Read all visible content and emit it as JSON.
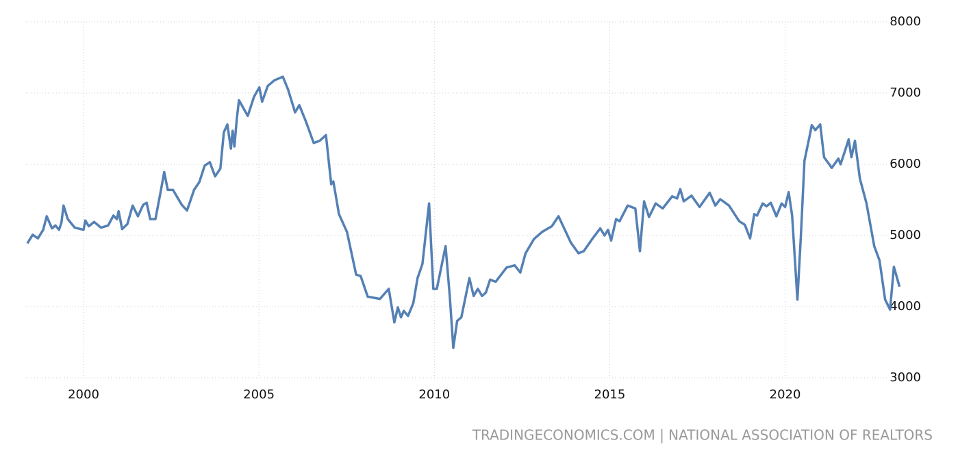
{
  "chart_data": {
    "type": "line",
    "source": "TRADINGECONOMICS.COM | NATIONAL ASSOCIATION OF REALTORS",
    "color": "#5480b4",
    "grid": true,
    "xlim": [
      1998.36,
      2023.6
    ],
    "xticks": [
      2000,
      2005,
      2010,
      2015,
      2020
    ],
    "ylim": [
      3000,
      8000
    ],
    "yticks": [
      3000,
      4000,
      5000,
      6000,
      7000,
      8000
    ],
    "x": [
      1998.4,
      1998.55,
      1998.7,
      1998.85,
      1998.95,
      1999.1,
      1999.2,
      1999.3,
      1999.37,
      1999.43,
      1999.55,
      1999.75,
      2000.0,
      2000.05,
      2000.15,
      2000.3,
      2000.5,
      2000.7,
      2000.85,
      2000.95,
      2001.0,
      2001.1,
      2001.25,
      2001.4,
      2001.55,
      2001.7,
      2001.8,
      2001.9,
      2002.05,
      2002.2,
      2002.3,
      2002.4,
      2002.55,
      2002.8,
      2002.95,
      2003.15,
      2003.3,
      2003.45,
      2003.6,
      2003.75,
      2003.9,
      2004.0,
      2004.1,
      2004.2,
      2004.25,
      2004.3,
      2004.37,
      2004.43,
      2004.68,
      2004.86,
      2005.01,
      2005.09,
      2005.25,
      2005.44,
      2005.68,
      2005.83,
      2006.03,
      2006.15,
      2006.34,
      2006.56,
      2006.73,
      2006.91,
      2007.06,
      2007.12,
      2007.28,
      2007.51,
      2007.77,
      2007.9,
      2008.1,
      2008.45,
      2008.7,
      2008.86,
      2008.96,
      2009.05,
      2009.13,
      2009.25,
      2009.4,
      2009.52,
      2009.66,
      2009.85,
      2009.97,
      2010.07,
      2010.32,
      2010.44,
      2010.54,
      2010.65,
      2010.77,
      2011.0,
      2011.12,
      2011.24,
      2011.36,
      2011.47,
      2011.59,
      2011.75,
      2012.06,
      2012.29,
      2012.45,
      2012.6,
      2012.84,
      2013.07,
      2013.35,
      2013.54,
      2013.89,
      2014.11,
      2014.26,
      2014.5,
      2014.73,
      2014.85,
      2014.95,
      2015.04,
      2015.18,
      2015.28,
      2015.51,
      2015.73,
      2015.86,
      2015.98,
      2016.12,
      2016.31,
      2016.51,
      2016.78,
      2016.92,
      2017.01,
      2017.11,
      2017.33,
      2017.56,
      2017.85,
      2018.01,
      2018.15,
      2018.4,
      2018.69,
      2018.85,
      2019.0,
      2019.12,
      2019.2,
      2019.36,
      2019.47,
      2019.59,
      2019.75,
      2019.9,
      2020.0,
      2020.1,
      2020.2,
      2020.35,
      2020.45,
      2020.55,
      2020.7,
      2020.76,
      2020.86,
      2021.0,
      2021.11,
      2021.33,
      2021.52,
      2021.58,
      2021.7,
      2021.81,
      2021.89,
      2021.99,
      2022.13,
      2022.32,
      2022.54,
      2022.69,
      2022.85,
      2022.99,
      2023.1,
      2023.26
    ],
    "values": [
      4890,
      5010,
      4960,
      5080,
      5270,
      5100,
      5140,
      5080,
      5180,
      5420,
      5230,
      5110,
      5080,
      5210,
      5130,
      5190,
      5110,
      5140,
      5280,
      5230,
      5340,
      5090,
      5160,
      5420,
      5270,
      5430,
      5460,
      5230,
      5230,
      5620,
      5890,
      5640,
      5640,
      5430,
      5350,
      5640,
      5750,
      5980,
      6030,
      5830,
      5940,
      6450,
      6560,
      6220,
      6470,
      6250,
      6650,
      6900,
      6680,
      6950,
      7080,
      6880,
      7100,
      7180,
      7230,
      7050,
      6730,
      6830,
      6600,
      6300,
      6330,
      6410,
      5720,
      5760,
      5300,
      5050,
      4450,
      4430,
      4140,
      4110,
      4250,
      3780,
      3990,
      3850,
      3940,
      3870,
      4050,
      4400,
      4600,
      5450,
      4250,
      4250,
      4850,
      4150,
      3420,
      3800,
      3850,
      4400,
      4150,
      4250,
      4150,
      4200,
      4380,
      4350,
      4550,
      4580,
      4480,
      4750,
      4950,
      5050,
      5130,
      5270,
      4900,
      4750,
      4780,
      4950,
      5100,
      5000,
      5080,
      4930,
      5230,
      5200,
      5420,
      5380,
      4780,
      5480,
      5260,
      5450,
      5380,
      5550,
      5520,
      5650,
      5480,
      5560,
      5400,
      5600,
      5420,
      5510,
      5420,
      5200,
      5150,
      4960,
      5300,
      5280,
      5450,
      5410,
      5460,
      5270,
      5450,
      5400,
      5610,
      5280,
      4100,
      5000,
      6050,
      6400,
      6550,
      6480,
      6560,
      6100,
      5950,
      6080,
      6000,
      6180,
      6350,
      6100,
      6330,
      5800,
      5450,
      4850,
      4650,
      4100,
      3960,
      4560,
      4280
    ]
  }
}
